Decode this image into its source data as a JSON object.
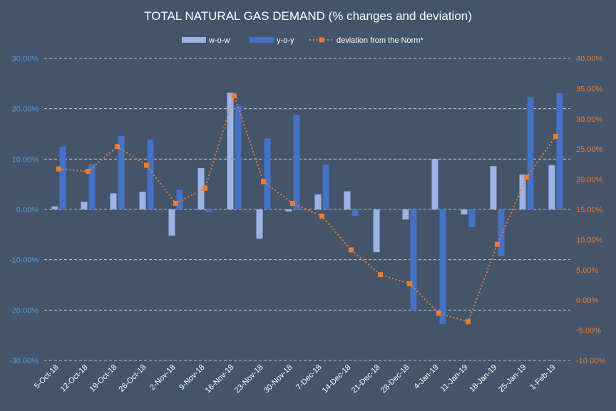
{
  "chart_data": {
    "type": "bar",
    "title": "TOTAL NATURAL GAS DEMAND (% changes and deviation)",
    "categories": [
      "5-Oct-18",
      "12-Oct-18",
      "19-Oct-18",
      "26-Oct-18",
      "2-Nov-18",
      "9-Nov-18",
      "16-Nov-18",
      "23-Nov-18",
      "30-Nov-18",
      "7-Dec-18",
      "14-Dec-18",
      "21-Dec-18",
      "28-Dec-18",
      "4-Jan-19",
      "11-Jan-19",
      "18-Jan-19",
      "25-Jan-19",
      "1-Feb-19"
    ],
    "series": [
      {
        "name": "w-o-w",
        "type": "bar",
        "axis": "left",
        "color": "#9db3e6",
        "values": [
          0.6,
          1.5,
          3.2,
          3.5,
          -5.2,
          8.2,
          23.2,
          -5.8,
          -0.4,
          3.0,
          3.6,
          -8.5,
          -2.0,
          10.0,
          -1.0,
          8.6,
          6.9,
          8.8
        ]
      },
      {
        "name": "y-o-y",
        "type": "bar",
        "axis": "left",
        "color": "#4472c4",
        "values": [
          12.5,
          9.0,
          14.6,
          13.9,
          3.9,
          -0.5,
          20.6,
          14.1,
          18.8,
          8.9,
          -1.3,
          0.0,
          -20.0,
          -22.8,
          -3.5,
          -9.3,
          22.3,
          23.1
        ]
      },
      {
        "name": "deviation from the Norm*",
        "type": "line",
        "axis": "right",
        "color": "#ed7d31",
        "values": [
          21.7,
          21.3,
          25.4,
          22.3,
          16.0,
          18.5,
          33.8,
          19.6,
          16.0,
          13.9,
          8.3,
          4.2,
          2.7,
          -2.2,
          -3.6,
          9.2,
          20.3,
          27.1
        ]
      }
    ],
    "y_left": {
      "min": -30,
      "max": 30,
      "step": 10,
      "tick_labels": [
        "-30.00%",
        "-20.00%",
        "-10.00%",
        "0.00%",
        "10.00%",
        "20.00%",
        "30.00%"
      ]
    },
    "y_right": {
      "min": -10,
      "max": 40,
      "step": 5,
      "tick_labels": [
        "-10.00%",
        "-5.00%",
        "0.00%",
        "5.00%",
        "10.00%",
        "15.00%",
        "20.00%",
        "25.00%",
        "30.00%",
        "35.00%",
        "40.00%"
      ]
    },
    "grid": true,
    "legend_position": "top-center"
  }
}
